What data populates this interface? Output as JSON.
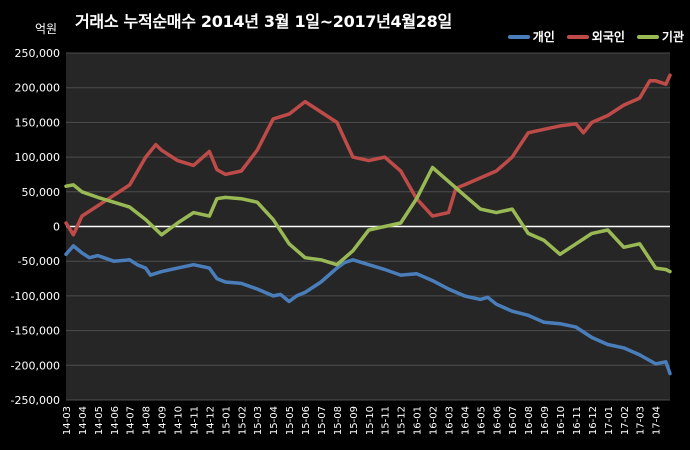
{
  "title": "거래소 누적순매수 2014년 3월 1일~2017년4월28일",
  "unit_label": "억원",
  "colors": {
    "background": "#000000",
    "plot_bg": "#262626",
    "grid": "#4d4d4d",
    "개인": "#4a7ebb",
    "외국인": "#be4b48",
    "기관": "#98b954"
  },
  "chart_data": {
    "type": "line",
    "title": "거래소 누적순매수 2014년 3월 1일~2017년4월28일",
    "xlabel": "",
    "ylabel": "억원",
    "ylim": [
      -250000,
      250000
    ],
    "yticks": [
      250000,
      200000,
      150000,
      100000,
      50000,
      0,
      -50000,
      -100000,
      -150000,
      -200000,
      -250000
    ],
    "ytick_labels": [
      "250,000",
      "200,000",
      "150,000",
      "100,000",
      "50,000",
      "0",
      "-50,000",
      "-100,000",
      "-150,000",
      "-200,000",
      "-250,000"
    ],
    "x_categories": [
      "14-03",
      "14-04",
      "14-05",
      "14-06",
      "14-07",
      "14-08",
      "14-09",
      "14-10",
      "14-11",
      "14-12",
      "15-01",
      "15-02",
      "15-03",
      "15-04",
      "15-05",
      "15-06",
      "15-07",
      "15-08",
      "15-09",
      "15-10",
      "15-11",
      "15-12",
      "16-01",
      "16-02",
      "16-03",
      "16-04",
      "16-05",
      "16-06",
      "16-07",
      "16-08",
      "16-09",
      "16-10",
      "16-11",
      "16-12",
      "17-01",
      "17-02",
      "17-03",
      "17-04"
    ],
    "x_end": "17-04-28",
    "grid": true,
    "legend_position": "top-right",
    "series": [
      {
        "name": "개인",
        "color": "#4a7ebb",
        "points": [
          [
            "14-03",
            -40000
          ],
          [
            "14-03-15",
            -28000
          ],
          [
            "14-04",
            -38000
          ],
          [
            "14-04-15",
            -45000
          ],
          [
            "14-05",
            -42000
          ],
          [
            "14-06",
            -50000
          ],
          [
            "14-07",
            -48000
          ],
          [
            "14-07-15",
            -55000
          ],
          [
            "14-08",
            -60000
          ],
          [
            "14-08-10",
            -70000
          ],
          [
            "14-09",
            -65000
          ],
          [
            "14-10",
            -60000
          ],
          [
            "14-11",
            -55000
          ],
          [
            "14-12",
            -60000
          ],
          [
            "14-12-15",
            -75000
          ],
          [
            "15-01",
            -80000
          ],
          [
            "15-02",
            -82000
          ],
          [
            "15-03",
            -90000
          ],
          [
            "15-04",
            -100000
          ],
          [
            "15-04-15",
            -98000
          ],
          [
            "15-05",
            -108000
          ],
          [
            "15-05-15",
            -100000
          ],
          [
            "15-06",
            -95000
          ],
          [
            "15-07",
            -80000
          ],
          [
            "15-08",
            -60000
          ],
          [
            "15-08-15",
            -52000
          ],
          [
            "15-09",
            -48000
          ],
          [
            "15-10",
            -55000
          ],
          [
            "15-11",
            -62000
          ],
          [
            "15-12",
            -70000
          ],
          [
            "16-01",
            -68000
          ],
          [
            "16-02",
            -78000
          ],
          [
            "16-03",
            -90000
          ],
          [
            "16-04",
            -100000
          ],
          [
            "16-05",
            -105000
          ],
          [
            "16-05-15",
            -102000
          ],
          [
            "16-06",
            -112000
          ],
          [
            "16-07",
            -122000
          ],
          [
            "16-08",
            -128000
          ],
          [
            "16-09",
            -138000
          ],
          [
            "16-10",
            -140000
          ],
          [
            "16-11",
            -145000
          ],
          [
            "16-12",
            -160000
          ],
          [
            "17-01",
            -170000
          ],
          [
            "17-02",
            -175000
          ],
          [
            "17-03",
            -185000
          ],
          [
            "17-04",
            -198000
          ],
          [
            "17-04-20",
            -195000
          ],
          [
            "17-04-28",
            -212000
          ]
        ]
      },
      {
        "name": "외국인",
        "color": "#be4b48",
        "points": [
          [
            "14-03",
            5000
          ],
          [
            "14-03-15",
            -12000
          ],
          [
            "14-04",
            15000
          ],
          [
            "14-05",
            30000
          ],
          [
            "14-06",
            45000
          ],
          [
            "14-07",
            60000
          ],
          [
            "14-08",
            100000
          ],
          [
            "14-08-20",
            118000
          ],
          [
            "14-09",
            110000
          ],
          [
            "14-10",
            95000
          ],
          [
            "14-11",
            88000
          ],
          [
            "14-12",
            108000
          ],
          [
            "14-12-15",
            82000
          ],
          [
            "15-01",
            75000
          ],
          [
            "15-02",
            80000
          ],
          [
            "15-03",
            110000
          ],
          [
            "15-04",
            155000
          ],
          [
            "15-05",
            162000
          ],
          [
            "15-06",
            180000
          ],
          [
            "15-07",
            165000
          ],
          [
            "15-08",
            150000
          ],
          [
            "15-09",
            100000
          ],
          [
            "15-10",
            95000
          ],
          [
            "15-11",
            100000
          ],
          [
            "15-12",
            80000
          ],
          [
            "16-01",
            40000
          ],
          [
            "16-02",
            15000
          ],
          [
            "16-03",
            20000
          ],
          [
            "16-03-15",
            55000
          ],
          [
            "16-04",
            60000
          ],
          [
            "16-05",
            70000
          ],
          [
            "16-06",
            80000
          ],
          [
            "16-07",
            100000
          ],
          [
            "16-08",
            135000
          ],
          [
            "16-09",
            140000
          ],
          [
            "16-10",
            145000
          ],
          [
            "16-11",
            148000
          ],
          [
            "16-11-15",
            135000
          ],
          [
            "16-12",
            150000
          ],
          [
            "17-01",
            160000
          ],
          [
            "17-02",
            175000
          ],
          [
            "17-03",
            185000
          ],
          [
            "17-03-20",
            210000
          ],
          [
            "17-04",
            210000
          ],
          [
            "17-04-20",
            205000
          ],
          [
            "17-04-28",
            218000
          ]
        ]
      },
      {
        "name": "기관",
        "color": "#98b954",
        "points": [
          [
            "14-03",
            58000
          ],
          [
            "14-03-15",
            60000
          ],
          [
            "14-04",
            50000
          ],
          [
            "14-05",
            42000
          ],
          [
            "14-06",
            35000
          ],
          [
            "14-07",
            28000
          ],
          [
            "14-08",
            10000
          ],
          [
            "14-09",
            -12000
          ],
          [
            "14-10",
            5000
          ],
          [
            "14-11",
            20000
          ],
          [
            "14-12",
            15000
          ],
          [
            "14-12-15",
            40000
          ],
          [
            "15-01",
            42000
          ],
          [
            "15-02",
            40000
          ],
          [
            "15-03",
            35000
          ],
          [
            "15-04",
            10000
          ],
          [
            "15-05",
            -25000
          ],
          [
            "15-06",
            -45000
          ],
          [
            "15-07",
            -48000
          ],
          [
            "15-08",
            -55000
          ],
          [
            "15-09",
            -35000
          ],
          [
            "15-10",
            -5000
          ],
          [
            "15-11",
            0
          ],
          [
            "15-12",
            5000
          ],
          [
            "16-01",
            40000
          ],
          [
            "16-02",
            85000
          ],
          [
            "16-03",
            65000
          ],
          [
            "16-04",
            45000
          ],
          [
            "16-05",
            25000
          ],
          [
            "16-06",
            20000
          ],
          [
            "16-07",
            25000
          ],
          [
            "16-08",
            -10000
          ],
          [
            "16-09",
            -20000
          ],
          [
            "16-10",
            -40000
          ],
          [
            "16-11",
            -25000
          ],
          [
            "16-12",
            -10000
          ],
          [
            "17-01",
            -5000
          ],
          [
            "17-02",
            -30000
          ],
          [
            "17-03",
            -25000
          ],
          [
            "17-04",
            -60000
          ],
          [
            "17-04-20",
            -62000
          ],
          [
            "17-04-28",
            -65000
          ]
        ]
      }
    ]
  }
}
